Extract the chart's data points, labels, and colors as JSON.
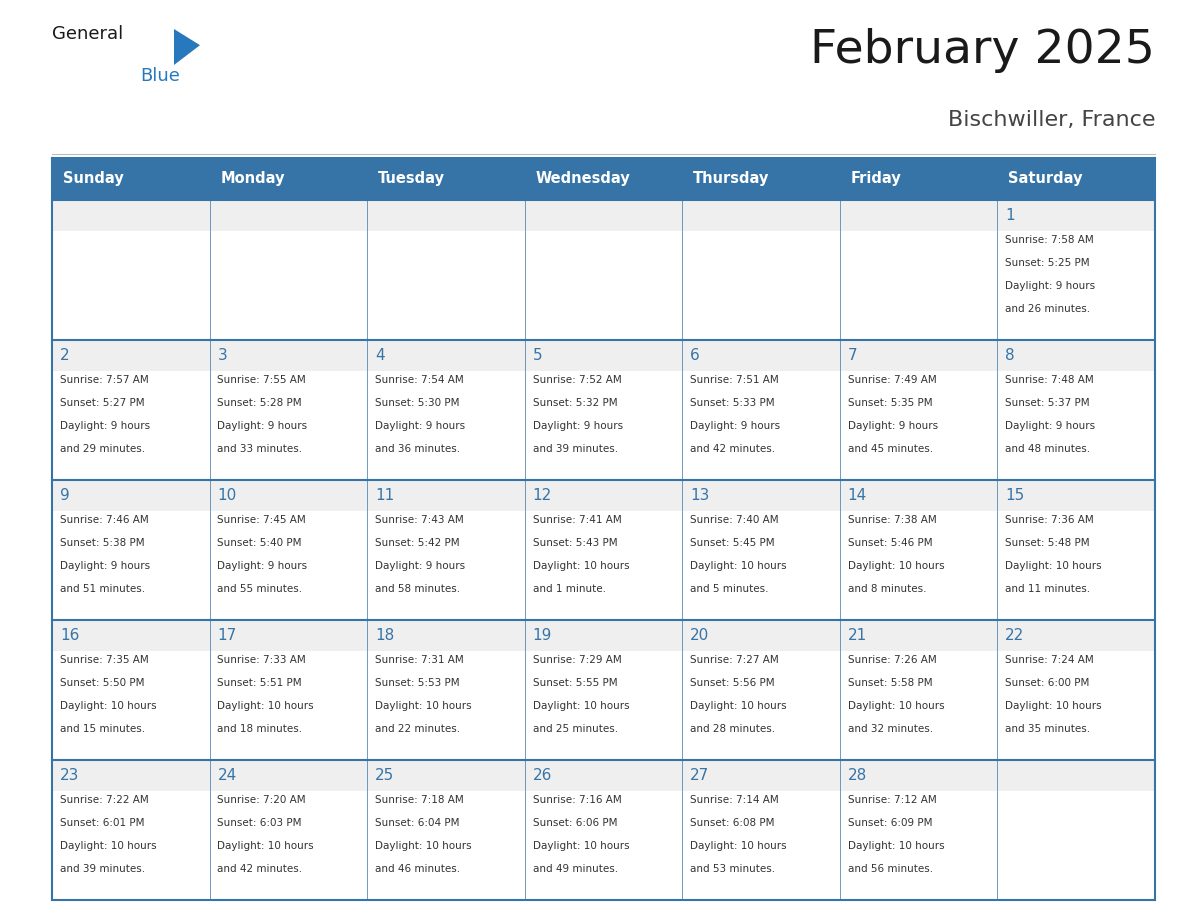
{
  "title": "February 2025",
  "subtitle": "Bischwiller, France",
  "days_of_week": [
    "Sunday",
    "Monday",
    "Tuesday",
    "Wednesday",
    "Thursday",
    "Friday",
    "Saturday"
  ],
  "header_bg": "#3674A8",
  "header_text_color": "#FFFFFF",
  "cell_bg": "#EFEFEF",
  "cell_text_bg": "#FFFFFF",
  "border_color": "#3674A8",
  "separator_color": "#3674A8",
  "day_num_color": "#3674A8",
  "text_color": "#333333",
  "logo_general_color": "#1a1a1a",
  "logo_blue_color": "#2878BE",
  "calendar_data": [
    [
      null,
      null,
      null,
      null,
      null,
      null,
      1
    ],
    [
      2,
      3,
      4,
      5,
      6,
      7,
      8
    ],
    [
      9,
      10,
      11,
      12,
      13,
      14,
      15
    ],
    [
      16,
      17,
      18,
      19,
      20,
      21,
      22
    ],
    [
      23,
      24,
      25,
      26,
      27,
      28,
      null
    ]
  ],
  "sunrise_data": {
    "1": "7:58 AM",
    "2": "7:57 AM",
    "3": "7:55 AM",
    "4": "7:54 AM",
    "5": "7:52 AM",
    "6": "7:51 AM",
    "7": "7:49 AM",
    "8": "7:48 AM",
    "9": "7:46 AM",
    "10": "7:45 AM",
    "11": "7:43 AM",
    "12": "7:41 AM",
    "13": "7:40 AM",
    "14": "7:38 AM",
    "15": "7:36 AM",
    "16": "7:35 AM",
    "17": "7:33 AM",
    "18": "7:31 AM",
    "19": "7:29 AM",
    "20": "7:27 AM",
    "21": "7:26 AM",
    "22": "7:24 AM",
    "23": "7:22 AM",
    "24": "7:20 AM",
    "25": "7:18 AM",
    "26": "7:16 AM",
    "27": "7:14 AM",
    "28": "7:12 AM"
  },
  "sunset_data": {
    "1": "5:25 PM",
    "2": "5:27 PM",
    "3": "5:28 PM",
    "4": "5:30 PM",
    "5": "5:32 PM",
    "6": "5:33 PM",
    "7": "5:35 PM",
    "8": "5:37 PM",
    "9": "5:38 PM",
    "10": "5:40 PM",
    "11": "5:42 PM",
    "12": "5:43 PM",
    "13": "5:45 PM",
    "14": "5:46 PM",
    "15": "5:48 PM",
    "16": "5:50 PM",
    "17": "5:51 PM",
    "18": "5:53 PM",
    "19": "5:55 PM",
    "20": "5:56 PM",
    "21": "5:58 PM",
    "22": "6:00 PM",
    "23": "6:01 PM",
    "24": "6:03 PM",
    "25": "6:04 PM",
    "26": "6:06 PM",
    "27": "6:08 PM",
    "28": "6:09 PM"
  },
  "daylight_line1": {
    "1": "Daylight: 9 hours",
    "2": "Daylight: 9 hours",
    "3": "Daylight: 9 hours",
    "4": "Daylight: 9 hours",
    "5": "Daylight: 9 hours",
    "6": "Daylight: 9 hours",
    "7": "Daylight: 9 hours",
    "8": "Daylight: 9 hours",
    "9": "Daylight: 9 hours",
    "10": "Daylight: 9 hours",
    "11": "Daylight: 9 hours",
    "12": "Daylight: 10 hours",
    "13": "Daylight: 10 hours",
    "14": "Daylight: 10 hours",
    "15": "Daylight: 10 hours",
    "16": "Daylight: 10 hours",
    "17": "Daylight: 10 hours",
    "18": "Daylight: 10 hours",
    "19": "Daylight: 10 hours",
    "20": "Daylight: 10 hours",
    "21": "Daylight: 10 hours",
    "22": "Daylight: 10 hours",
    "23": "Daylight: 10 hours",
    "24": "Daylight: 10 hours",
    "25": "Daylight: 10 hours",
    "26": "Daylight: 10 hours",
    "27": "Daylight: 10 hours",
    "28": "Daylight: 10 hours"
  },
  "daylight_line2": {
    "1": "and 26 minutes.",
    "2": "and 29 minutes.",
    "3": "and 33 minutes.",
    "4": "and 36 minutes.",
    "5": "and 39 minutes.",
    "6": "and 42 minutes.",
    "7": "and 45 minutes.",
    "8": "and 48 minutes.",
    "9": "and 51 minutes.",
    "10": "and 55 minutes.",
    "11": "and 58 minutes.",
    "12": "and 1 minute.",
    "13": "and 5 minutes.",
    "14": "and 8 minutes.",
    "15": "and 11 minutes.",
    "16": "and 15 minutes.",
    "17": "and 18 minutes.",
    "18": "and 22 minutes.",
    "19": "and 25 minutes.",
    "20": "and 28 minutes.",
    "21": "and 32 minutes.",
    "22": "and 35 minutes.",
    "23": "and 39 minutes.",
    "24": "and 42 minutes.",
    "25": "and 46 minutes.",
    "26": "and 49 minutes.",
    "27": "and 53 minutes.",
    "28": "and 56 minutes."
  },
  "fig_width": 11.88,
  "fig_height": 9.18,
  "dpi": 100
}
